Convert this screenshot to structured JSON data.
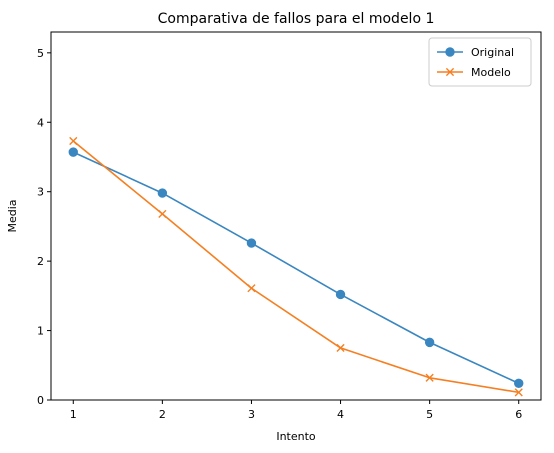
{
  "chart_data": {
    "type": "line",
    "title": "Comparativa de fallos para el modelo 1",
    "xlabel": "Intento",
    "ylabel": "Media",
    "x": [
      1,
      2,
      3,
      4,
      5,
      6
    ],
    "xlim": [
      0.75,
      6.25
    ],
    "ylim": [
      0,
      5.3
    ],
    "xticks": [
      1,
      2,
      3,
      4,
      5,
      6
    ],
    "yticks": [
      0,
      1,
      2,
      3,
      4,
      5
    ],
    "grid": false,
    "legend_position": "top-right",
    "series": [
      {
        "name": "Original",
        "values": [
          3.57,
          2.98,
          2.26,
          1.52,
          0.83,
          0.24
        ],
        "color": "#3a86c0",
        "marker": "circle"
      },
      {
        "name": "Modelo",
        "values": [
          3.73,
          2.68,
          1.61,
          0.75,
          0.32,
          0.11
        ],
        "color": "#f57f21",
        "marker": "x"
      }
    ]
  }
}
